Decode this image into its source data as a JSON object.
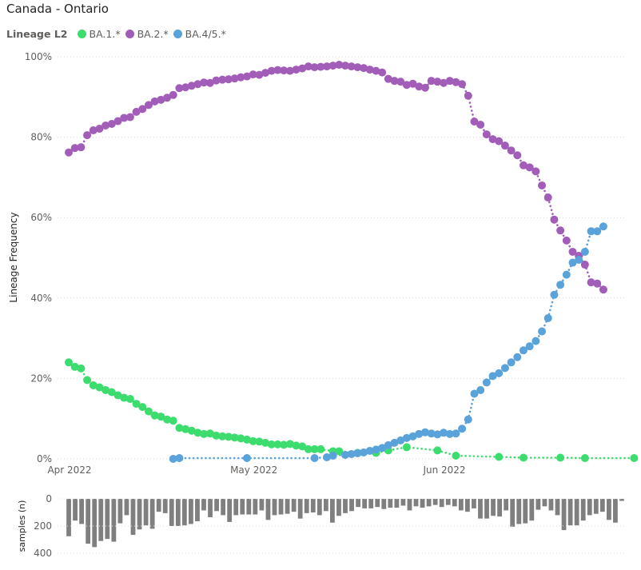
{
  "header": {
    "title": "Canada - Ontario"
  },
  "legend": {
    "title": "Lineage L2",
    "items": [
      {
        "name": "BA.1.*",
        "color": "#3ddc6f"
      },
      {
        "name": "BA.2.*",
        "color": "#a25db8"
      },
      {
        "name": "BA.4/5.*",
        "color": "#5aa2da"
      }
    ]
  },
  "chart_data": [
    {
      "type": "scatter",
      "mode": "lines+markers",
      "line_style": "dotted",
      "ylabel": "Lineage Frequency",
      "ylim": [
        0,
        100
      ],
      "y_ticks": [
        "0%",
        "20%",
        "40%",
        "60%",
        "80%",
        "100%"
      ],
      "x_ticks": [
        {
          "label": "Apr 2022",
          "day": 0
        },
        {
          "label": "May 2022",
          "day": 30
        },
        {
          "label": "Jun 2022",
          "day": 61
        }
      ],
      "x_axis": "date",
      "x_range": [
        "2022-04-01",
        "2022-06-30"
      ],
      "grid": true,
      "series": [
        {
          "name": "BA.1.*",
          "color": "#3ddc6f",
          "points": [
            [
              0,
              24.0
            ],
            [
              1,
              22.9
            ],
            [
              2,
              22.5
            ],
            [
              3,
              19.6
            ],
            [
              4,
              18.3
            ],
            [
              5,
              17.8
            ],
            [
              6,
              17.1
            ],
            [
              7,
              16.6
            ],
            [
              8,
              15.8
            ],
            [
              9,
              15.2
            ],
            [
              10,
              14.9
            ],
            [
              11,
              13.7
            ],
            [
              12,
              12.9
            ],
            [
              13,
              11.8
            ],
            [
              14,
              10.8
            ],
            [
              15,
              10.5
            ],
            [
              16,
              9.8
            ],
            [
              17,
              9.5
            ],
            [
              18,
              7.7
            ],
            [
              19,
              7.4
            ],
            [
              20,
              7.0
            ],
            [
              21,
              6.5
            ],
            [
              22,
              6.2
            ],
            [
              23,
              6.3
            ],
            [
              24,
              5.8
            ],
            [
              25,
              5.6
            ],
            [
              26,
              5.5
            ],
            [
              27,
              5.3
            ],
            [
              28,
              5.1
            ],
            [
              29,
              4.8
            ],
            [
              30,
              4.4
            ],
            [
              31,
              4.3
            ],
            [
              32,
              4.0
            ],
            [
              33,
              3.6
            ],
            [
              34,
              3.6
            ],
            [
              35,
              3.5
            ],
            [
              36,
              3.7
            ],
            [
              37,
              3.3
            ],
            [
              38,
              3.1
            ],
            [
              39,
              2.4
            ],
            [
              40,
              2.4
            ],
            [
              41,
              2.4
            ],
            [
              43,
              1.9
            ],
            [
              44,
              1.9
            ],
            [
              47,
              1.5
            ],
            [
              50,
              1.5
            ],
            [
              52,
              2.1
            ],
            [
              55,
              2.9
            ],
            [
              60,
              2.1
            ],
            [
              63,
              0.8
            ],
            [
              70,
              0.5
            ],
            [
              74,
              0.3
            ],
            [
              80,
              0.3
            ],
            [
              84,
              0.2
            ],
            [
              92,
              0.2
            ]
          ]
        },
        {
          "name": "BA.2.*",
          "color": "#a25db8",
          "points": [
            [
              0,
              76.2
            ],
            [
              1,
              77.3
            ],
            [
              2,
              77.5
            ],
            [
              3,
              80.5
            ],
            [
              4,
              81.7
            ],
            [
              5,
              82.1
            ],
            [
              6,
              82.9
            ],
            [
              7,
              83.3
            ],
            [
              8,
              84.0
            ],
            [
              9,
              84.8
            ],
            [
              10,
              85.0
            ],
            [
              11,
              86.3
            ],
            [
              12,
              87.0
            ],
            [
              13,
              88.0
            ],
            [
              14,
              88.9
            ],
            [
              15,
              89.3
            ],
            [
              16,
              89.8
            ],
            [
              17,
              90.5
            ],
            [
              18,
              92.2
            ],
            [
              19,
              92.4
            ],
            [
              20,
              92.8
            ],
            [
              21,
              93.2
            ],
            [
              22,
              93.6
            ],
            [
              23,
              93.5
            ],
            [
              24,
              94.1
            ],
            [
              25,
              94.3
            ],
            [
              26,
              94.4
            ],
            [
              27,
              94.6
            ],
            [
              28,
              94.9
            ],
            [
              29,
              95.1
            ],
            [
              30,
              95.6
            ],
            [
              31,
              95.5
            ],
            [
              32,
              96.0
            ],
            [
              33,
              96.5
            ],
            [
              34,
              96.7
            ],
            [
              35,
              96.6
            ],
            [
              36,
              96.5
            ],
            [
              37,
              96.8
            ],
            [
              38,
              97.1
            ],
            [
              39,
              97.6
            ],
            [
              40,
              97.4
            ],
            [
              41,
              97.5
            ],
            [
              42,
              97.6
            ],
            [
              43,
              97.8
            ],
            [
              44,
              98.0
            ],
            [
              45,
              97.8
            ],
            [
              46,
              97.6
            ],
            [
              47,
              97.4
            ],
            [
              48,
              97.2
            ],
            [
              49,
              96.8
            ],
            [
              50,
              96.5
            ],
            [
              51,
              96.1
            ],
            [
              52,
              94.5
            ],
            [
              53,
              94.0
            ],
            [
              54,
              93.8
            ],
            [
              55,
              93.0
            ],
            [
              56,
              93.3
            ],
            [
              57,
              92.6
            ],
            [
              58,
              92.3
            ],
            [
              59,
              94.0
            ],
            [
              60,
              93.8
            ],
            [
              61,
              93.5
            ],
            [
              62,
              94.0
            ],
            [
              63,
              93.7
            ],
            [
              64,
              93.2
            ],
            [
              65,
              90.3
            ],
            [
              66,
              83.9
            ],
            [
              67,
              83.1
            ],
            [
              68,
              80.7
            ],
            [
              69,
              79.5
            ],
            [
              70,
              79.0
            ],
            [
              71,
              77.9
            ],
            [
              72,
              76.7
            ],
            [
              73,
              75.5
            ],
            [
              74,
              73.0
            ],
            [
              75,
              72.5
            ],
            [
              76,
              71.5
            ],
            [
              77,
              68.0
            ],
            [
              78,
              65.0
            ],
            [
              79,
              59.5
            ],
            [
              80,
              56.8
            ],
            [
              81,
              54.3
            ],
            [
              82,
              51.5
            ],
            [
              83,
              50.5
            ],
            [
              84,
              48.3
            ],
            [
              85,
              43.9
            ],
            [
              86,
              43.6
            ],
            [
              87,
              42.1
            ]
          ]
        },
        {
          "name": "BA.4/5.*",
          "color": "#5aa2da",
          "points": [
            [
              17,
              0.0
            ],
            [
              18,
              0.2
            ],
            [
              29,
              0.2
            ],
            [
              40,
              0.2
            ],
            [
              42,
              0.4
            ],
            [
              43,
              0.8
            ],
            [
              45,
              1.0
            ],
            [
              46,
              1.2
            ],
            [
              47,
              1.4
            ],
            [
              48,
              1.6
            ],
            [
              49,
              2.0
            ],
            [
              50,
              2.3
            ],
            [
              51,
              2.7
            ],
            [
              52,
              3.4
            ],
            [
              53,
              4.0
            ],
            [
              54,
              4.6
            ],
            [
              55,
              5.2
            ],
            [
              56,
              5.6
            ],
            [
              57,
              6.2
            ],
            [
              58,
              6.6
            ],
            [
              59,
              6.3
            ],
            [
              60,
              6.1
            ],
            [
              61,
              6.5
            ],
            [
              62,
              6.2
            ],
            [
              63,
              6.3
            ],
            [
              64,
              7.5
            ],
            [
              65,
              9.8
            ],
            [
              66,
              16.2
            ],
            [
              67,
              17.1
            ],
            [
              68,
              19.0
            ],
            [
              69,
              20.6
            ],
            [
              70,
              21.3
            ],
            [
              71,
              22.6
            ],
            [
              72,
              24.0
            ],
            [
              73,
              25.3
            ],
            [
              74,
              27.0
            ],
            [
              75,
              28.0
            ],
            [
              76,
              29.3
            ],
            [
              77,
              31.7
            ],
            [
              78,
              35.0
            ],
            [
              79,
              40.8
            ],
            [
              80,
              43.3
            ],
            [
              81,
              45.8
            ],
            [
              82,
              48.8
            ],
            [
              83,
              49.5
            ],
            [
              84,
              51.5
            ],
            [
              85,
              56.6
            ],
            [
              86,
              56.6
            ],
            [
              87,
              57.8
            ]
          ]
        }
      ]
    },
    {
      "type": "bar",
      "ylabel": "samples (n)",
      "y_ticks": [
        "0",
        "200",
        "400"
      ],
      "ylim": [
        0,
        400
      ],
      "orientation": "downward",
      "values": [
        275,
        160,
        185,
        330,
        355,
        310,
        295,
        315,
        180,
        120,
        265,
        225,
        195,
        220,
        95,
        105,
        200,
        200,
        195,
        185,
        165,
        85,
        135,
        90,
        120,
        170,
        120,
        115,
        115,
        115,
        85,
        155,
        120,
        115,
        110,
        95,
        145,
        105,
        100,
        120,
        90,
        175,
        125,
        105,
        90,
        60,
        70,
        70,
        60,
        75,
        65,
        65,
        50,
        85,
        55,
        65,
        55,
        45,
        60,
        45,
        55,
        85,
        95,
        70,
        145,
        145,
        125,
        130,
        85,
        205,
        185,
        180,
        160,
        80,
        55,
        85,
        120,
        230,
        195,
        195,
        160,
        120,
        110,
        95,
        155,
        175,
        15
      ]
    }
  ]
}
